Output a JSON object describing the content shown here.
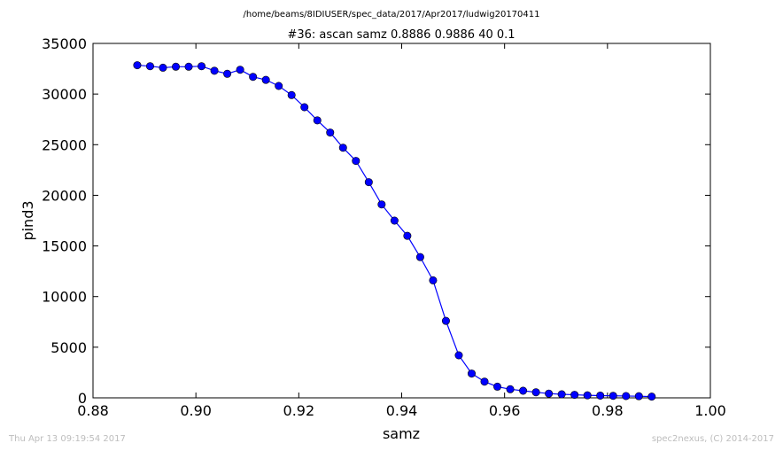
{
  "header": {
    "path": "/home/beams/8IDIUSER/spec_data/2017/Apr2017/ludwig20170411"
  },
  "footer": {
    "timestamp": "Thu Apr 13 09:19:54 2017",
    "credit": "spec2nexus, (C) 2014-2017"
  },
  "chart_data": {
    "type": "line",
    "title": "#36: ascan  samz 0.8886 0.9886  40 0.1",
    "xlabel": "samz",
    "ylabel": "pind3",
    "xlim": [
      0.88,
      1.0
    ],
    "ylim": [
      0,
      35000
    ],
    "xticks": [
      "0.88",
      "0.90",
      "0.92",
      "0.94",
      "0.96",
      "0.98",
      "1.00"
    ],
    "yticks": [
      "0",
      "5000",
      "10000",
      "15000",
      "20000",
      "25000",
      "30000",
      "35000"
    ],
    "grid": false,
    "color": "#0000ff",
    "marker": "circle",
    "series": [
      {
        "x": [
          0.8886,
          0.8911,
          0.8936,
          0.8961,
          0.8986,
          0.9011,
          0.9036,
          0.9061,
          0.9086,
          0.9111,
          0.9136,
          0.9161,
          0.9186,
          0.9211,
          0.9236,
          0.9261,
          0.9286,
          0.9311,
          0.9336,
          0.9361,
          0.9386,
          0.9411,
          0.9436,
          0.9461,
          0.9486,
          0.9511,
          0.9536,
          0.9561,
          0.9586,
          0.9611,
          0.9636,
          0.9661,
          0.9686,
          0.9711,
          0.9736,
          0.9761,
          0.9786,
          0.9811,
          0.9836,
          0.9861,
          0.9886
        ],
        "y": [
          32850,
          32750,
          32600,
          32700,
          32700,
          32750,
          32300,
          32000,
          32400,
          31700,
          31400,
          30800,
          29900,
          28700,
          27400,
          26200,
          24700,
          23400,
          21300,
          19100,
          17500,
          16000,
          13900,
          11600,
          7600,
          4200,
          2400,
          1600,
          1100,
          850,
          700,
          550,
          420,
          350,
          300,
          250,
          220,
          200,
          180,
          160,
          120
        ]
      }
    ]
  }
}
